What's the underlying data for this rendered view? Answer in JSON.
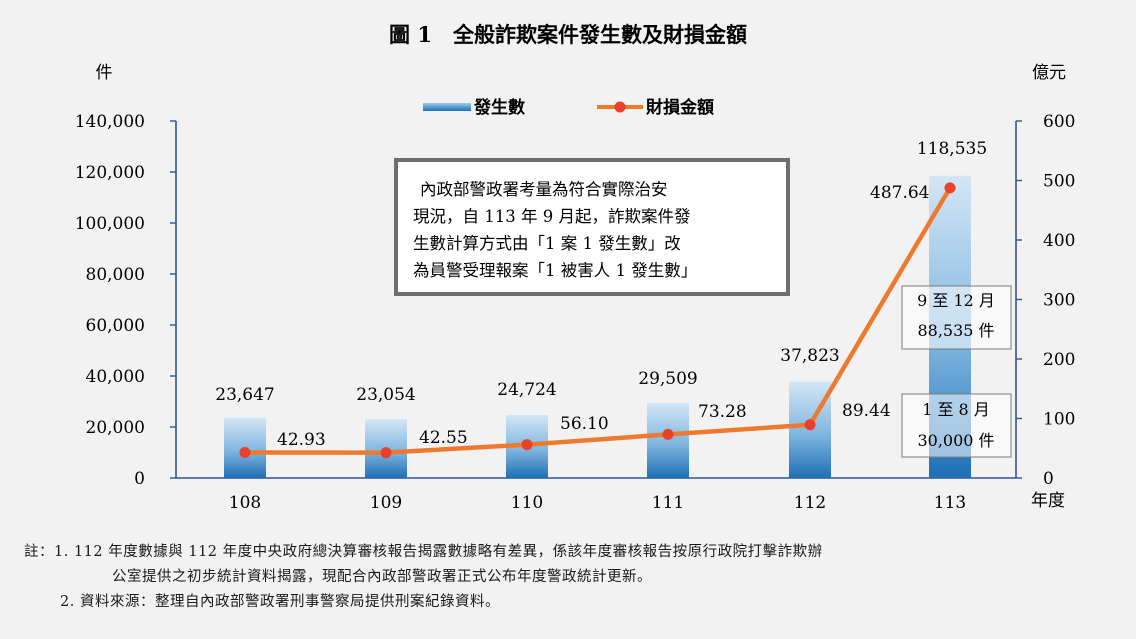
{
  "chart_data": {
    "type": "bar+line",
    "title": "圖 1　全般詐欺案件發生數及財損金額",
    "y_left_unit": "件",
    "y_right_unit": "億元",
    "x_unit": "年度",
    "categories": [
      "108",
      "109",
      "110",
      "111",
      "112",
      "113"
    ],
    "ylim_left": [
      0,
      140000
    ],
    "yticks_left": [
      "0",
      "20,000",
      "40,000",
      "60,000",
      "80,000",
      "100,000",
      "120,000",
      "140,000"
    ],
    "ylim_right": [
      0,
      600
    ],
    "yticks_right": [
      "0",
      "100",
      "200",
      "300",
      "400",
      "500",
      "600"
    ],
    "legend_position": "top-center",
    "series": [
      {
        "name": "發生數",
        "type": "bar",
        "axis": "left",
        "color": "#2f86c8",
        "values": [
          23647,
          23054,
          24724,
          29509,
          37823,
          118535
        ],
        "labels": [
          "23,647",
          "23,054",
          "24,724",
          "29,509",
          "37,823",
          "118,535"
        ]
      },
      {
        "name": "財損金額",
        "type": "line",
        "axis": "right",
        "color": "#ee7a30",
        "marker_color": "#e8402a",
        "values": [
          42.93,
          42.55,
          56.1,
          73.28,
          89.44,
          487.64
        ],
        "labels": [
          "42.93",
          "42.55",
          "56.10",
          "73.28",
          "89.44",
          "487.64"
        ]
      }
    ],
    "annotation_box": {
      "lines": [
        "內政部警政署考量為符合實際治安",
        "現況，自 113 年 9 月起，詐欺案件發",
        "生數計算方式由「1 案 1 發生數」改",
        "為員警受理報案「1 被害人 1 發生數」"
      ]
    },
    "split_2024": {
      "upper": {
        "period": "9 至 12 月",
        "count": "88,535 件",
        "value": 88535
      },
      "lower": {
        "period": "1 至 8 月",
        "count": "30,000 件",
        "value": 30000
      }
    }
  },
  "notes": {
    "line1": "註：1. 112 年度數據與 112 年度中央政府總決算審核報告揭露數據略有差異，係該年度審核報告按原行政院打擊詐欺辦",
    "line2": "公室提供之初步統計資料揭露，現配合內政部警政署正式公布年度警政統計更新。",
    "line3": "2. 資料來源：整理自內政部警政署刑事警察局提供刑案紀錄資料。"
  }
}
